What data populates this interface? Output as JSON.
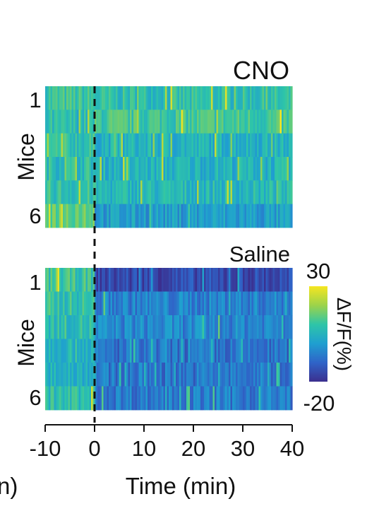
{
  "chart_data": [
    {
      "type": "heatmap",
      "title": "CNO",
      "ylabel": "Mice",
      "row_labels": [
        "1",
        "",
        "",
        "",
        "",
        "6"
      ],
      "xlim": [
        -10,
        40
      ],
      "injection_time": 0,
      "rows": [
        {
          "pre": 10,
          "post": 8
        },
        {
          "pre": 7,
          "post": 11
        },
        {
          "pre": 9,
          "post": 5
        },
        {
          "pre": 8,
          "post": 5
        },
        {
          "pre": 9,
          "post": 6
        },
        {
          "pre": 16,
          "post": 0
        }
      ]
    },
    {
      "type": "heatmap",
      "title": "Saline",
      "ylabel": "Mice",
      "row_labels": [
        "1",
        "",
        "",
        "",
        "",
        "6"
      ],
      "xlim": [
        -10,
        40
      ],
      "injection_time": 0,
      "rows": [
        {
          "pre": 10,
          "post": -15
        },
        {
          "pre": 9,
          "post": -5
        },
        {
          "pre": 8,
          "post": -4
        },
        {
          "pre": 6,
          "post": -8
        },
        {
          "pre": 5,
          "post": -7
        },
        {
          "pre": 8,
          "post": -6
        }
      ]
    }
  ],
  "colorbar": {
    "label": "ΔF/F(%)",
    "max_label": "30",
    "min_label": "-20",
    "vmin": -20,
    "vmax": 30,
    "colormap": [
      "#3b2f8f",
      "#2f64c8",
      "#1f9fd0",
      "#2ec5a8",
      "#9cd34a",
      "#f6e620"
    ]
  },
  "x_axis": {
    "label": "Time (min)",
    "ticks": [
      "-10",
      "0",
      "10",
      "20",
      "30",
      "40"
    ]
  },
  "edge_fragment": "n)"
}
